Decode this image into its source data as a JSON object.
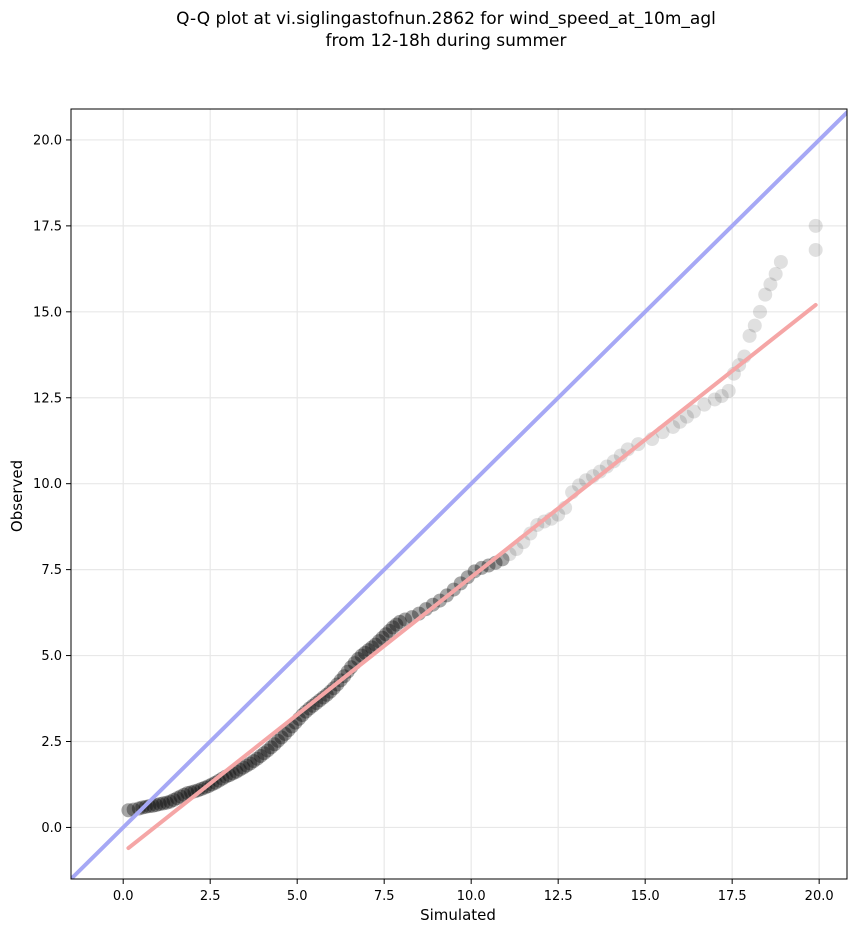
{
  "chart_data": {
    "type": "scatter",
    "title_line1": "Q-Q plot at vi.siglingastofnun.2862 for wind_speed_at_10m_agl",
    "title_line2": "from 12-18h during summer",
    "xlabel": "Simulated",
    "ylabel": "Observed",
    "xlim": [
      -1.5,
      20.8
    ],
    "ylim": [
      -1.5,
      20.9
    ],
    "xticks": [
      0.0,
      2.5,
      5.0,
      7.5,
      10.0,
      12.5,
      15.0,
      17.5,
      20.0
    ],
    "yticks": [
      0.0,
      2.5,
      5.0,
      7.5,
      10.0,
      12.5,
      15.0,
      17.5,
      20.0
    ],
    "grid": true,
    "colors": {
      "points": "#000000",
      "identity_line": "#a6a8f5",
      "fit_line": "#f5a6a6",
      "grid": "#e8e8e8"
    },
    "identity_line": {
      "x": [
        -1.5,
        20.8
      ],
      "y": [
        -1.5,
        20.8
      ]
    },
    "fit_line": {
      "x": [
        0.15,
        19.9
      ],
      "y": [
        -0.6,
        15.2
      ]
    },
    "series": [
      {
        "points": [
          [
            0.15,
            0.5
          ],
          [
            0.3,
            0.52
          ],
          [
            0.45,
            0.55
          ],
          [
            0.55,
            0.58
          ],
          [
            0.65,
            0.6
          ],
          [
            0.75,
            0.62
          ],
          [
            0.85,
            0.63
          ],
          [
            0.95,
            0.65
          ],
          [
            1.05,
            0.68
          ],
          [
            1.15,
            0.7
          ],
          [
            1.25,
            0.72
          ],
          [
            1.35,
            0.75
          ],
          [
            1.45,
            0.8
          ],
          [
            1.55,
            0.85
          ],
          [
            1.65,
            0.9
          ],
          [
            1.75,
            0.95
          ],
          [
            1.85,
            1.0
          ],
          [
            1.95,
            1.02
          ],
          [
            2.05,
            1.05
          ],
          [
            2.15,
            1.08
          ],
          [
            2.25,
            1.12
          ],
          [
            2.35,
            1.16
          ],
          [
            2.45,
            1.2
          ],
          [
            2.55,
            1.25
          ],
          [
            2.65,
            1.3
          ],
          [
            2.75,
            1.36
          ],
          [
            2.85,
            1.42
          ],
          [
            2.95,
            1.48
          ],
          [
            3.05,
            1.52
          ],
          [
            3.15,
            1.57
          ],
          [
            3.25,
            1.62
          ],
          [
            3.35,
            1.68
          ],
          [
            3.45,
            1.74
          ],
          [
            3.55,
            1.8
          ],
          [
            3.65,
            1.86
          ],
          [
            3.75,
            1.93
          ],
          [
            3.85,
            2.0
          ],
          [
            3.95,
            2.08
          ],
          [
            4.05,
            2.16
          ],
          [
            4.15,
            2.24
          ],
          [
            4.25,
            2.33
          ],
          [
            4.35,
            2.42
          ],
          [
            4.45,
            2.52
          ],
          [
            4.55,
            2.62
          ],
          [
            4.65,
            2.72
          ],
          [
            4.75,
            2.83
          ],
          [
            4.85,
            2.94
          ],
          [
            4.95,
            3.05
          ],
          [
            5.05,
            3.16
          ],
          [
            5.15,
            3.27
          ],
          [
            5.25,
            3.37
          ],
          [
            5.35,
            3.46
          ],
          [
            5.45,
            3.54
          ],
          [
            5.55,
            3.62
          ],
          [
            5.65,
            3.7
          ],
          [
            5.75,
            3.78
          ],
          [
            5.85,
            3.86
          ],
          [
            5.95,
            3.95
          ],
          [
            6.05,
            4.05
          ],
          [
            6.15,
            4.16
          ],
          [
            6.25,
            4.28
          ],
          [
            6.35,
            4.4
          ],
          [
            6.45,
            4.53
          ],
          [
            6.55,
            4.66
          ],
          [
            6.65,
            4.78
          ],
          [
            6.75,
            4.9
          ],
          [
            6.85,
            5.0
          ],
          [
            6.95,
            5.08
          ],
          [
            7.05,
            5.16
          ],
          [
            7.15,
            5.24
          ],
          [
            7.25,
            5.32
          ],
          [
            7.35,
            5.42
          ],
          [
            7.45,
            5.52
          ],
          [
            7.55,
            5.62
          ],
          [
            7.65,
            5.72
          ],
          [
            7.75,
            5.82
          ],
          [
            7.85,
            5.9
          ],
          [
            7.95,
            5.98
          ],
          [
            8.1,
            6.05
          ],
          [
            8.3,
            6.12
          ],
          [
            8.5,
            6.22
          ],
          [
            8.7,
            6.35
          ],
          [
            8.9,
            6.48
          ],
          [
            9.1,
            6.6
          ],
          [
            9.3,
            6.75
          ],
          [
            9.5,
            6.92
          ],
          [
            9.7,
            7.1
          ],
          [
            9.9,
            7.28
          ],
          [
            10.1,
            7.45
          ],
          [
            10.3,
            7.55
          ],
          [
            10.5,
            7.62
          ],
          [
            10.7,
            7.7
          ],
          [
            10.9,
            7.8
          ],
          [
            11.1,
            7.95
          ],
          [
            11.3,
            8.1
          ],
          [
            11.5,
            8.3
          ],
          [
            11.7,
            8.55
          ],
          [
            11.9,
            8.8
          ],
          [
            12.1,
            8.9
          ],
          [
            12.3,
            8.98
          ],
          [
            12.5,
            9.1
          ],
          [
            12.7,
            9.3
          ],
          [
            12.9,
            9.75
          ],
          [
            13.1,
            9.95
          ],
          [
            13.3,
            10.1
          ],
          [
            13.5,
            10.22
          ],
          [
            13.7,
            10.35
          ],
          [
            13.9,
            10.5
          ],
          [
            14.1,
            10.65
          ],
          [
            14.3,
            10.82
          ],
          [
            14.5,
            11.0
          ],
          [
            14.8,
            11.15
          ],
          [
            15.2,
            11.3
          ],
          [
            15.5,
            11.5
          ],
          [
            15.8,
            11.65
          ],
          [
            16.0,
            11.8
          ],
          [
            16.2,
            11.95
          ],
          [
            16.4,
            12.1
          ],
          [
            16.7,
            12.3
          ],
          [
            17.0,
            12.45
          ],
          [
            17.2,
            12.55
          ],
          [
            17.4,
            12.7
          ],
          [
            17.55,
            13.2
          ],
          [
            17.7,
            13.45
          ],
          [
            17.85,
            13.7
          ],
          [
            18.0,
            14.3
          ],
          [
            18.15,
            14.6
          ],
          [
            18.3,
            15.0
          ],
          [
            18.45,
            15.5
          ],
          [
            18.6,
            15.8
          ],
          [
            18.75,
            16.1
          ],
          [
            18.9,
            16.45
          ],
          [
            19.9,
            16.8
          ],
          [
            19.9,
            17.5
          ]
        ]
      }
    ]
  }
}
